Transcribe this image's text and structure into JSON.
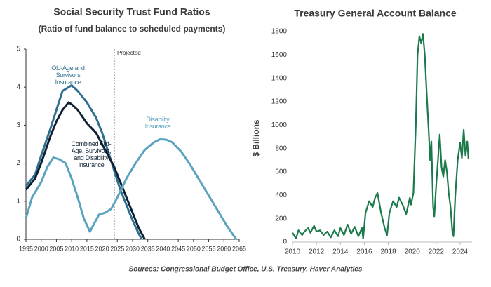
{
  "chart_data": [
    {
      "type": "line",
      "title": "Social Security Trust Fund Ratios",
      "subtitle": "(Ratio of fund balance to scheduled payments)",
      "xlim": [
        1995,
        2065
      ],
      "xticks": [
        1995,
        2000,
        2005,
        2010,
        2015,
        2020,
        2025,
        2030,
        2035,
        2040,
        2045,
        2050,
        2055,
        2060,
        2065
      ],
      "ylim": [
        0,
        5
      ],
      "yticks": [
        0,
        1,
        2,
        3,
        4,
        5
      ],
      "annotations": [
        {
          "text": "Projected",
          "x": 2024
        }
      ],
      "series": [
        {
          "name": "Old-Age and Survivors Insurance",
          "color": "#2f6f8f",
          "x": [
            1995,
            1998,
            2000,
            2003,
            2005,
            2007,
            2008,
            2010,
            2012,
            2015,
            2018,
            2020,
            2022,
            2024,
            2026,
            2028,
            2030,
            2032,
            2033
          ],
          "values": [
            1.4,
            1.7,
            2.2,
            2.9,
            3.4,
            3.9,
            3.95,
            4.05,
            3.9,
            3.6,
            3.2,
            2.8,
            2.3,
            1.8,
            1.3,
            0.9,
            0.5,
            0.15,
            0
          ]
        },
        {
          "name": "Combined Old-Age, Survivors, and Disability Insurance",
          "color": "#0f2233",
          "x": [
            1995,
            1998,
            2000,
            2003,
            2005,
            2007,
            2009,
            2010,
            2012,
            2015,
            2018,
            2020,
            2022,
            2024,
            2026,
            2028,
            2030,
            2032,
            2034
          ],
          "values": [
            1.3,
            1.6,
            2.0,
            2.7,
            3.1,
            3.4,
            3.6,
            3.55,
            3.4,
            3.05,
            2.8,
            2.5,
            2.2,
            1.9,
            1.5,
            1.1,
            0.7,
            0.3,
            0
          ]
        },
        {
          "name": "Disability Insurance",
          "color": "#5aa3bf",
          "x": [
            1995,
            1997,
            2000,
            2002,
            2004,
            2006,
            2008,
            2010,
            2012,
            2014,
            2016,
            2017,
            2019,
            2021,
            2023,
            2025,
            2028,
            2031,
            2034,
            2037,
            2039,
            2041,
            2043,
            2046,
            2049,
            2052,
            2055,
            2058,
            2061,
            2064
          ],
          "values": [
            0.55,
            1.1,
            1.5,
            1.9,
            2.15,
            2.1,
            2.0,
            1.6,
            1.1,
            0.55,
            0.2,
            0.35,
            0.65,
            0.7,
            0.8,
            1.1,
            1.6,
            2.0,
            2.35,
            2.55,
            2.63,
            2.62,
            2.55,
            2.3,
            1.95,
            1.55,
            1.15,
            0.75,
            0.35,
            0
          ]
        }
      ]
    },
    {
      "type": "line",
      "title": "Treasury General Account Balance",
      "ylabel": "$ Billions",
      "xlim": [
        2010,
        2025
      ],
      "xticks": [
        2010,
        2012,
        2014,
        2016,
        2018,
        2020,
        2022,
        2024
      ],
      "ylim": [
        0,
        1800
      ],
      "yticks": [
        0,
        200,
        400,
        600,
        800,
        1000,
        1200,
        1400,
        1600,
        1800
      ],
      "series": [
        {
          "color": "#1b7a4a",
          "x": [
            2010.0,
            2010.3,
            2010.5,
            2010.8,
            2011.0,
            2011.3,
            2011.5,
            2011.8,
            2012.0,
            2012.3,
            2012.6,
            2012.9,
            2013.2,
            2013.5,
            2013.8,
            2014.0,
            2014.3,
            2014.6,
            2014.9,
            2015.2,
            2015.5,
            2015.8,
            2015.9,
            2016.1,
            2016.4,
            2016.7,
            2016.9,
            2017.1,
            2017.4,
            2017.7,
            2017.9,
            2018.1,
            2018.4,
            2018.7,
            2018.9,
            2019.2,
            2019.5,
            2019.8,
            2019.9,
            2020.1,
            2020.3,
            2020.45,
            2020.6,
            2020.75,
            2020.9,
            2021.05,
            2021.2,
            2021.35,
            2021.5,
            2021.6,
            2021.75,
            2021.85,
            2022.0,
            2022.15,
            2022.3,
            2022.45,
            2022.6,
            2022.75,
            2022.9,
            2023.05,
            2023.2,
            2023.35,
            2023.45,
            2023.6,
            2023.8,
            2024.0,
            2024.15,
            2024.3,
            2024.45,
            2024.6,
            2024.7
          ],
          "values": [
            80,
            30,
            100,
            60,
            90,
            120,
            80,
            140,
            90,
            100,
            60,
            90,
            40,
            100,
            50,
            120,
            60,
            150,
            70,
            130,
            50,
            120,
            30,
            250,
            350,
            300,
            380,
            420,
            250,
            120,
            60,
            250,
            350,
            300,
            380,
            320,
            240,
            380,
            320,
            420,
            1000,
            1600,
            1760,
            1700,
            1780,
            1600,
            1300,
            1000,
            700,
            860,
            300,
            220,
            480,
            700,
            920,
            640,
            560,
            700,
            600,
            420,
            300,
            100,
            50,
            400,
            700,
            850,
            720,
            960,
            740,
            860,
            710
          ]
        }
      ]
    }
  ],
  "source": "Sources: Congressional Budget Office, U.S. Treasury, Haver Analytics"
}
